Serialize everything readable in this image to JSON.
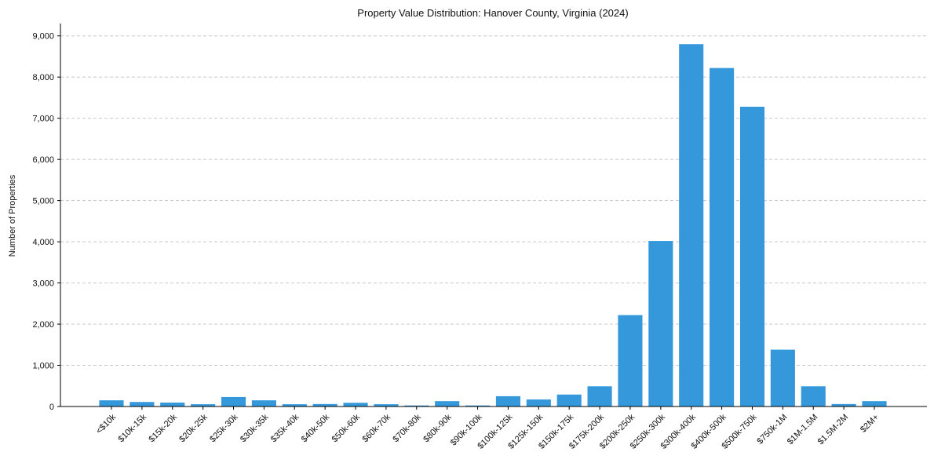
{
  "chart_data": {
    "type": "bar",
    "title": "Property Value Distribution: Hanover County, Virginia (2024)",
    "xlabel": "",
    "ylabel": "Number of Properties",
    "ylim": [
      0,
      9300
    ],
    "yticks": [
      0,
      1000,
      2000,
      3000,
      4000,
      5000,
      6000,
      7000,
      8000,
      9000
    ],
    "ytick_labels": [
      "0",
      "1,000",
      "2,000",
      "3,000",
      "4,000",
      "5,000",
      "6,000",
      "7,000",
      "8,000",
      "9,000"
    ],
    "grid": true,
    "bar_color": "#3498db",
    "categories": [
      "<$10k",
      "$10k-15k",
      "$15k-20k",
      "$20k-25k",
      "$25k-30k",
      "$30k-35k",
      "$35k-40k",
      "$40k-50k",
      "$50k-60k",
      "$60k-70k",
      "$70k-80k",
      "$80k-90k",
      "$90k-100k",
      "$100k-125k",
      "$125k-150k",
      "$150k-175k",
      "$175k-200k",
      "$200k-250k",
      "$250k-300k",
      "$300k-400k",
      "$400k-500k",
      "$500k-750k",
      "$750k-1M",
      "$1M-1.5M",
      "$1.5M-2M",
      "$2M+"
    ],
    "values": [
      150,
      110,
      95,
      55,
      230,
      150,
      55,
      60,
      90,
      55,
      25,
      130,
      25,
      250,
      170,
      290,
      490,
      2220,
      4020,
      8800,
      8220,
      7280,
      1380,
      490,
      60,
      130
    ]
  }
}
